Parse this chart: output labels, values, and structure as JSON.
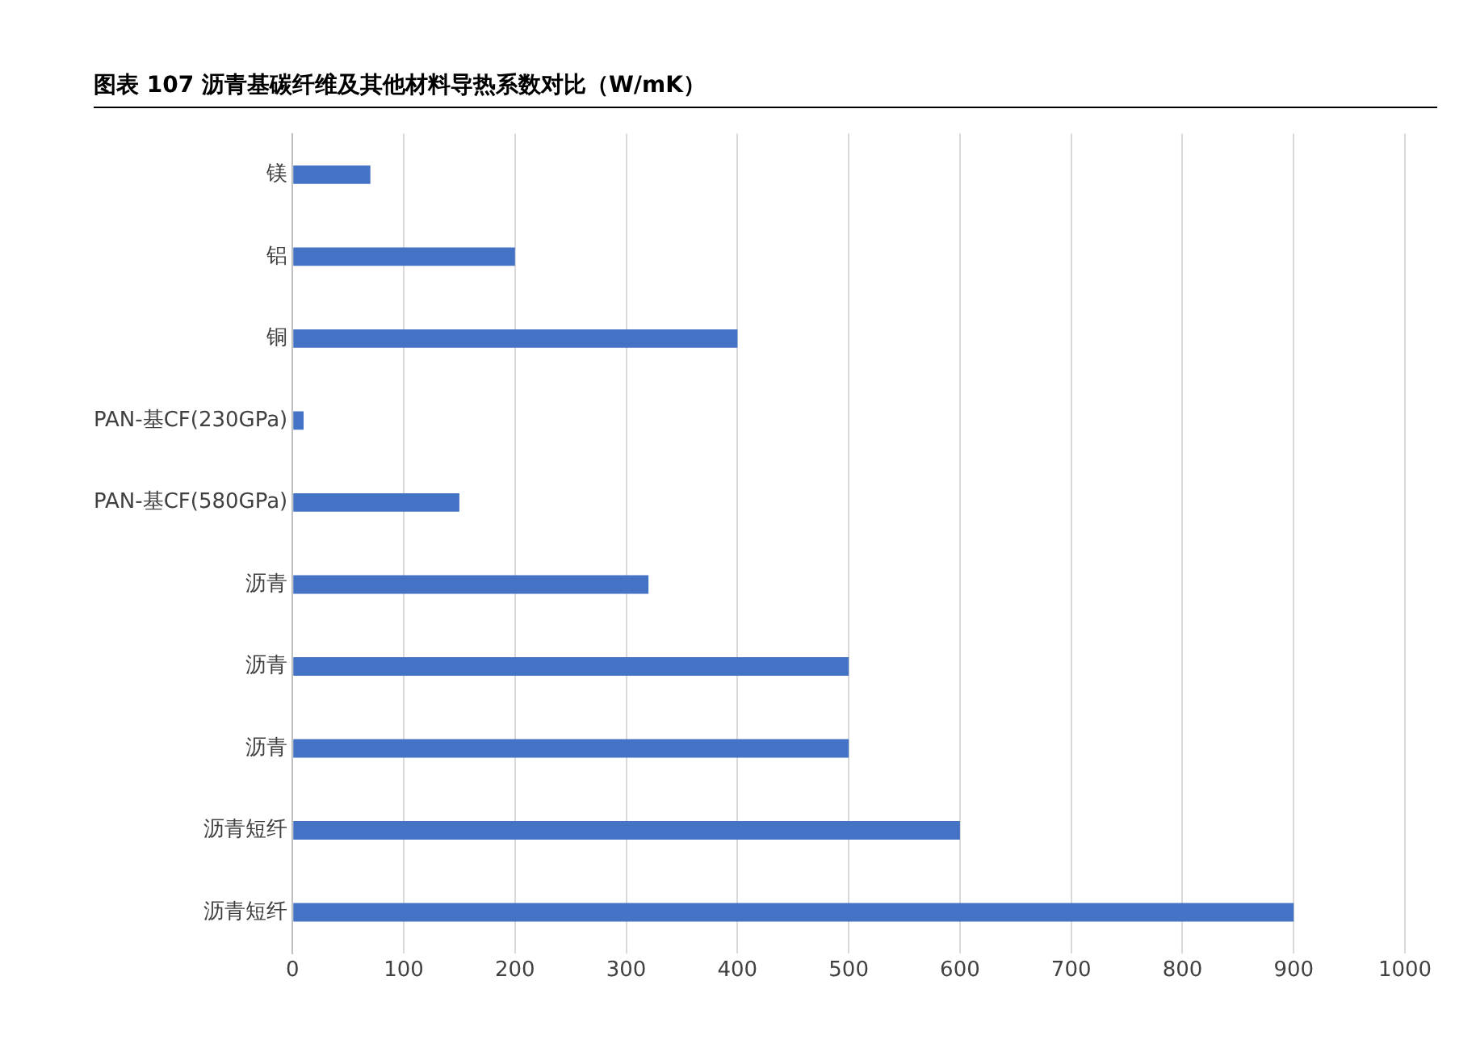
{
  "chart_data": {
    "type": "bar",
    "orientation": "horizontal",
    "title": "图表 107 沥青基碳纤维及其他材料导热系数对比（W/mK）",
    "categories": [
      "镁",
      "铝",
      "铜",
      "PAN-基CF(230GPa)",
      "PAN-基CF(580GPa)",
      "沥青",
      "沥青",
      "沥青",
      "沥青短纤",
      "沥青短纤"
    ],
    "values": [
      70,
      200,
      400,
      10,
      150,
      320,
      500,
      500,
      600,
      900
    ],
    "color": "#4472c4",
    "xlim": [
      0,
      1000
    ],
    "xticks": [
      0,
      100,
      200,
      300,
      400,
      500,
      600,
      700,
      800,
      900,
      1000
    ],
    "grid": "x"
  }
}
